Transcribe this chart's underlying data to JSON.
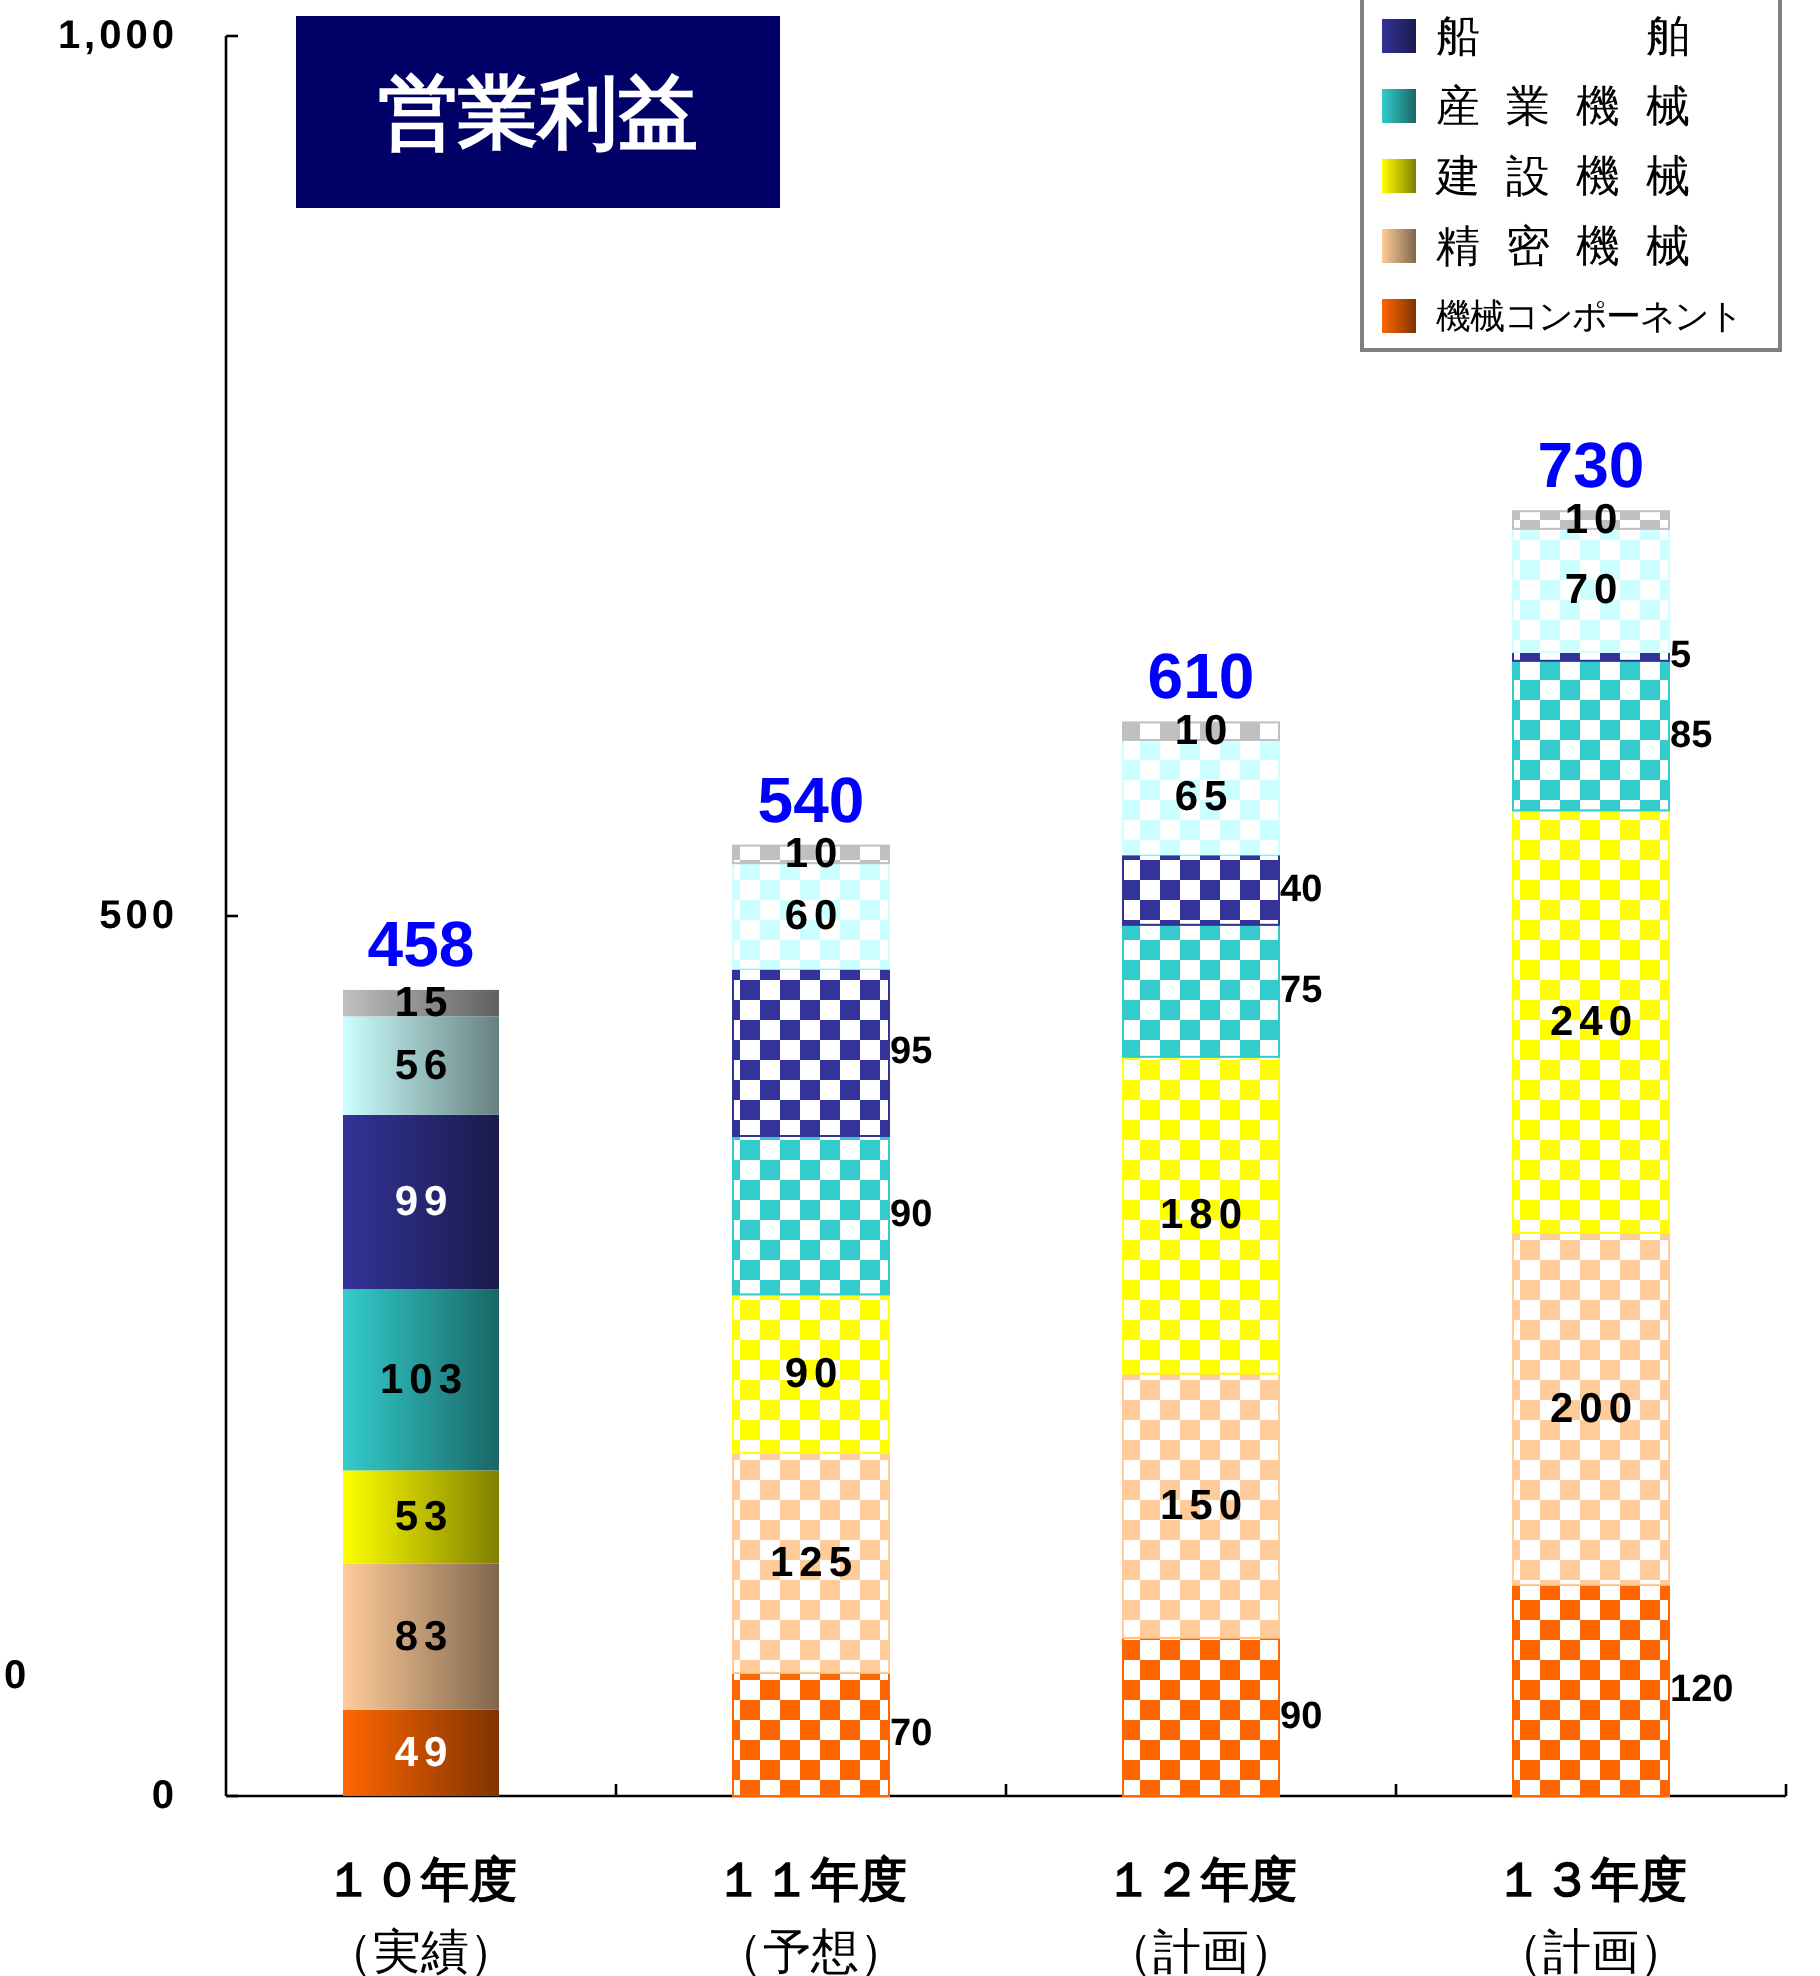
{
  "chart_data": {
    "type": "bar",
    "title": "営業利益",
    "categories": [
      "１０年度（実績）",
      "１１年度（予想）",
      "１２年度（計画）",
      "１３年度（計画）"
    ],
    "stacked": true,
    "series": [
      {
        "name": "機械コンポーネント",
        "color": "#ff6600",
        "values": [
          49,
          70,
          90,
          120
        ]
      },
      {
        "name": "精密機械",
        "color": "#ffcc99",
        "values": [
          83,
          125,
          150,
          200
        ]
      },
      {
        "name": "建設機械",
        "color": "#ffff00",
        "values": [
          53,
          90,
          180,
          240
        ]
      },
      {
        "name": "産業機械",
        "color": "#33cccc",
        "values": [
          103,
          90,
          75,
          85
        ]
      },
      {
        "name": "船舶",
        "color": "#333399",
        "values": [
          99,
          95,
          40,
          5
        ]
      },
      {
        "color": "#ccffff",
        "values": [
          56,
          60,
          65,
          70
        ]
      },
      {
        "color": "#c0c0c0",
        "values": [
          15,
          10,
          10,
          10
        ]
      }
    ],
    "ylim": [
      0,
      1000
    ],
    "yticks": [
      0,
      500,
      {
        "value": 1000,
        "label": "1,000"
      }
    ],
    "data_labels": true,
    "totals": [
      "458",
      "540",
      "610",
      "730"
    ],
    "legend": "top right",
    "annotations": [
      "0"
    ]
  }
}
